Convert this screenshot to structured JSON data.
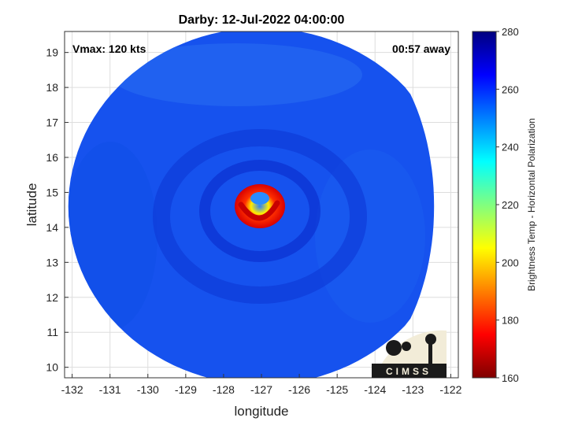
{
  "chart_data": {
    "type": "heatmap",
    "title": "Darby: 12-Jul-2022 04:00:00",
    "xlabel": "longitude",
    "ylabel": "latitude",
    "xlim": [
      -132.2,
      -121.8
    ],
    "ylim": [
      9.7,
      19.6
    ],
    "xticks": [
      -132,
      -131,
      -130,
      -129,
      -128,
      -127,
      -126,
      -125,
      -124,
      -123,
      -122
    ],
    "yticks": [
      10,
      11,
      12,
      13,
      14,
      15,
      16,
      17,
      18,
      19
    ],
    "grid": true,
    "annotations": {
      "vmax": "Vmax: 120 kts",
      "time_away": "00:57 away"
    },
    "colorbar": {
      "label": "Brightness Temp - Horizontal Polarization",
      "range": [
        160,
        280
      ],
      "ticks": [
        160,
        180,
        200,
        220,
        240,
        260,
        280
      ],
      "colormap": "jet"
    },
    "storm": {
      "name": "Darby",
      "center_lon": -127.0,
      "center_lat": 14.5,
      "eyewall_min_temp": 185,
      "background_temp": 258
    },
    "swath": {
      "center_lon": -127.0,
      "center_lat": 14.6,
      "radius_deg": 5.1,
      "east_edge_lon": -123.1
    }
  },
  "logo": {
    "text": "CIMSS"
  }
}
